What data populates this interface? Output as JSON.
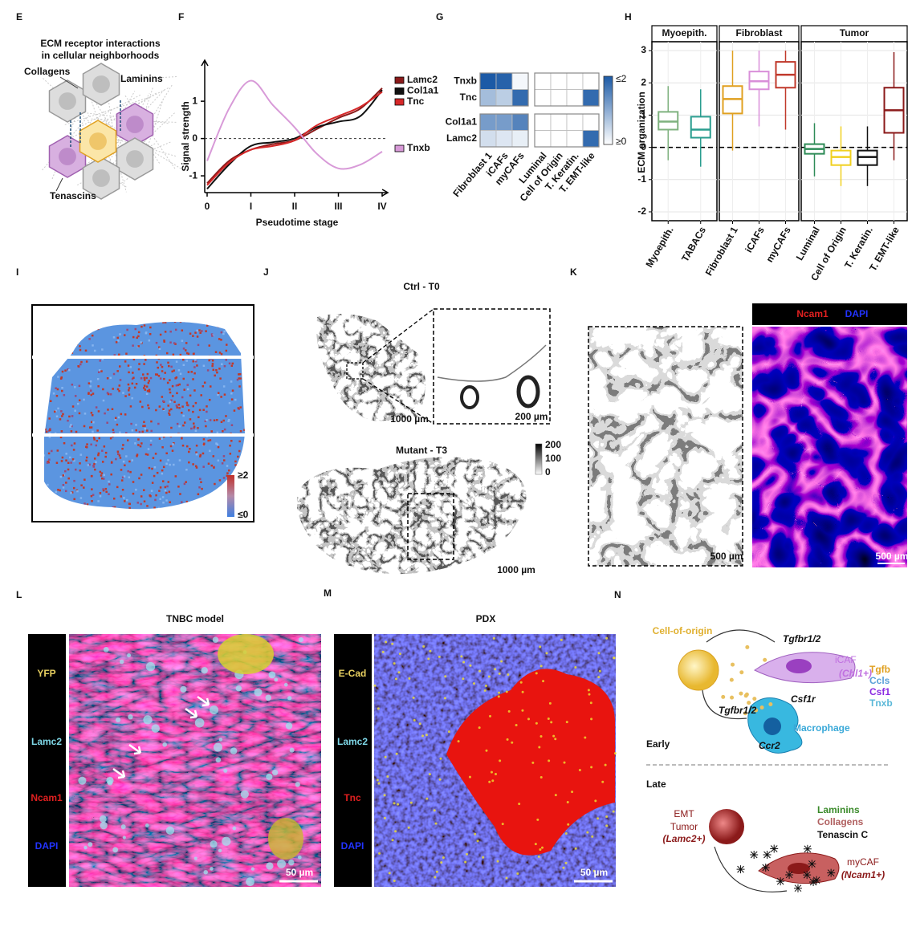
{
  "panel_labels": [
    "E",
    "F",
    "G",
    "H",
    "I",
    "J",
    "K",
    "L",
    "M",
    "N"
  ],
  "E": {
    "title": [
      "ECM receptor interactions",
      "in cellular neighborhoods"
    ],
    "labels": [
      "Collagens",
      "Laminins",
      "Tenascins"
    ]
  },
  "chart_data": [
    {
      "type": "line",
      "xlabel": "Pseudotime stage",
      "ylabel": "Signal strength",
      "x": [
        0,
        0.5,
        1,
        1.5,
        2,
        2.5,
        3,
        3.5,
        4
      ],
      "xlim": [
        0,
        4.13
      ],
      "xticks": [
        0,
        {
          "value": 1,
          "label": "I"
        },
        {
          "value": 2,
          "label": "II"
        },
        {
          "value": 3,
          "label": "III"
        },
        {
          "value": 4,
          "label": "IV"
        }
      ],
      "ylim": [
        -1.45,
        2.1
      ],
      "yticks": [
        -1,
        0,
        1
      ],
      "reference_line": 0,
      "series": [
        {
          "name": "Lamc2",
          "color": "#8b1a1a",
          "values": [
            -1.2,
            -0.6,
            -0.3,
            -0.15,
            -0.05,
            0.25,
            0.55,
            0.8,
            1.35
          ]
        },
        {
          "name": "Col1a1",
          "color": "#111111",
          "values": [
            -1.35,
            -0.7,
            -0.2,
            -0.1,
            0.0,
            0.3,
            0.45,
            0.6,
            1.3
          ]
        },
        {
          "name": "Tnc",
          "color": "#d62728",
          "values": [
            -1.25,
            -0.65,
            -0.3,
            -0.2,
            -0.05,
            0.35,
            0.6,
            0.85,
            1.25
          ]
        },
        {
          "name": "Tnxb",
          "color": "#d89ad8",
          "values": [
            -0.6,
            0.8,
            1.55,
            0.9,
            0.3,
            -0.4,
            -0.8,
            -0.7,
            -0.35
          ]
        }
      ]
    },
    {
      "type": "heatmap",
      "rows": [
        "Tnxb",
        "Tnc",
        "Col1a1",
        "Lamc2"
      ],
      "columns": [
        "Fibroblast 1",
        "iCAFs",
        "myCAFs",
        "Luminal",
        "Cell of Origin",
        "T. Keratin.",
        "T. EMT-like"
      ],
      "values": [
        [
          2,
          1.9,
          0.1,
          0,
          0,
          0,
          0
        ],
        [
          0.8,
          0.6,
          1.8,
          0,
          0,
          0,
          1.8
        ],
        [
          1.2,
          1.2,
          1.5,
          0,
          0,
          0,
          0
        ],
        [
          0.4,
          0.3,
          0.2,
          0,
          0,
          0,
          1.8
        ]
      ],
      "clim": [
        0,
        2
      ],
      "color": "#1c5aa6",
      "colorbar_labels": [
        "≤2",
        "≥0"
      ]
    },
    {
      "type": "box",
      "ylabel": "ECM  organization",
      "ylim": [
        -2.2,
        3.2
      ],
      "yticks": [
        -2,
        -1,
        0,
        1,
        2,
        3
      ],
      "reference_line": 0,
      "grid": true,
      "facets": [
        {
          "name": "Myoepith.",
          "categories": [
            "Myoepith.",
            "TABACs"
          ],
          "colors": [
            "#7fb27f",
            "#2a9d8f"
          ],
          "boxes": [
            [
              -0.4,
              0.55,
              0.8,
              1.1,
              1.9
            ],
            [
              -0.6,
              0.3,
              0.55,
              0.95,
              1.8
            ]
          ]
        },
        {
          "name": "Fibroblast",
          "categories": [
            "Fibroblast 1",
            "iCAFs",
            "myCAFs"
          ],
          "colors": [
            "#e0a020",
            "#d98fd9",
            "#c0392b"
          ],
          "boxes": [
            [
              -0.1,
              1.05,
              1.5,
              1.9,
              3.0
            ],
            [
              0.65,
              1.8,
              2.05,
              2.35,
              3.0
            ],
            [
              0.55,
              1.85,
              2.25,
              2.65,
              3.0
            ]
          ]
        },
        {
          "name": "Tumor",
          "categories": [
            "Luminal",
            "Cell of Origin",
            "T. Keratin.",
            "T. EMT-like"
          ],
          "colors": [
            "#2e8b57",
            "#f0d020",
            "#111111",
            "#8b1a1a"
          ],
          "boxes": [
            [
              -0.9,
              -0.2,
              -0.05,
              0.1,
              0.75
            ],
            [
              -1.2,
              -0.55,
              -0.3,
              -0.1,
              0.65
            ],
            [
              -1.2,
              -0.55,
              -0.3,
              -0.1,
              0.65
            ],
            [
              -0.4,
              0.45,
              1.15,
              1.85,
              2.95
            ]
          ]
        }
      ]
    }
  ],
  "I": {
    "colorbar_labels": [
      "≥2",
      "≤0"
    ]
  },
  "J": {
    "titles": [
      "Ctrl - T0",
      "Mutant - T3"
    ],
    "scale_bars": [
      "1000 µm",
      "200 µm",
      "1000 µm"
    ],
    "colorbar_labels": [
      "200",
      "100",
      "0"
    ]
  },
  "K": {
    "channels": [
      "Ncam1",
      "DAPI"
    ],
    "scale_bars": [
      "500 µm",
      "500 µm"
    ]
  },
  "L": {
    "title": "TNBC model",
    "channels": [
      "YFP",
      "Lamc2",
      "Ncam1",
      "DAPI"
    ],
    "scale_bar": "50 µm"
  },
  "M": {
    "title": "PDX",
    "channels": [
      "E-Cad",
      "Lamc2",
      "Tnc",
      "DAPI"
    ],
    "scale_bar": "50 µm"
  },
  "N": {
    "early_label": "Early",
    "late_label": "Late",
    "texts": [
      "Cell-of-origin",
      "Tgfbr1/2",
      "iCAF",
      "(Chl1+)",
      "Tgfb",
      "Ccls",
      "Csf1",
      "Tnxb",
      "Csf1r",
      "Tgfbr1/2",
      "Macrophage",
      "Ccr2",
      "EMT",
      "Tumor",
      "(Lamc2+)",
      "Laminins",
      "Collagens",
      "Tenascin C",
      "myCAF",
      "(Ncam1+)"
    ]
  }
}
